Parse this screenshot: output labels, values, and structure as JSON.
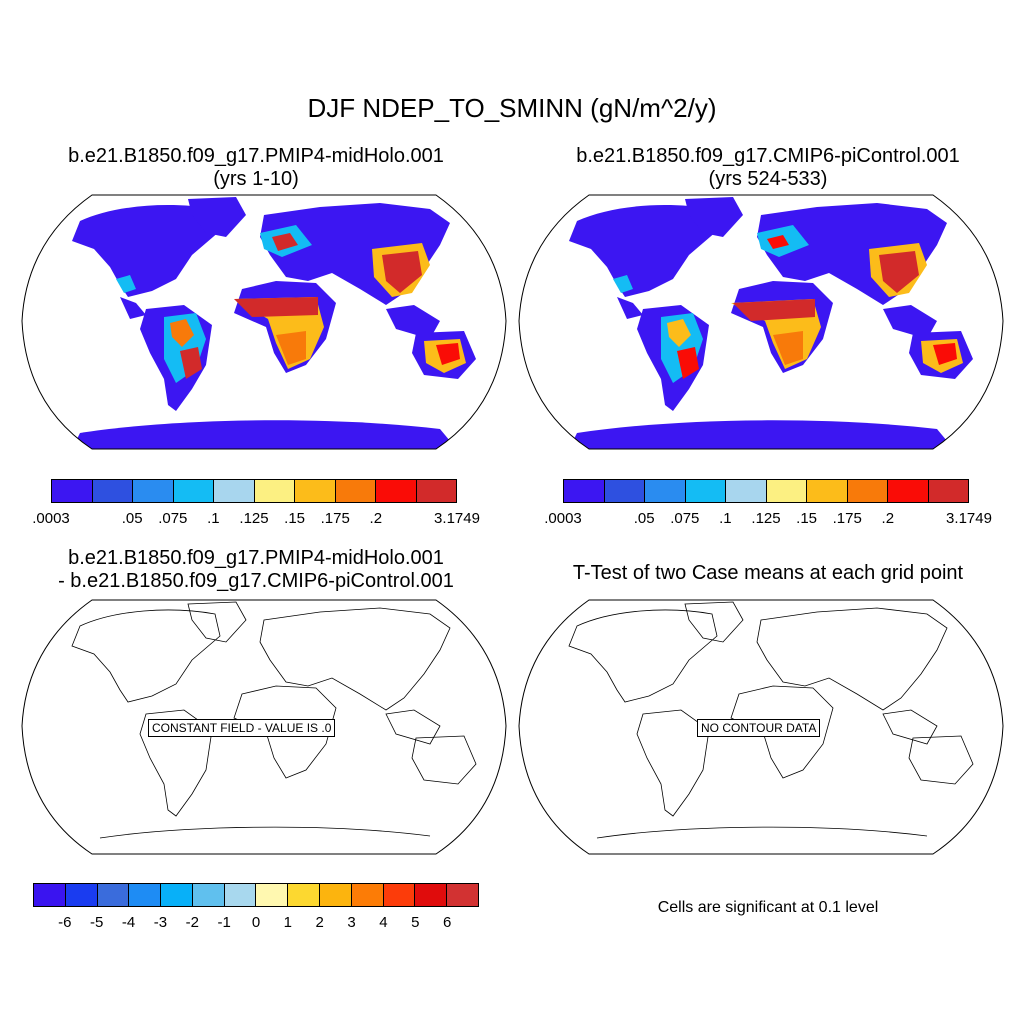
{
  "title": "DJF NDEP_TO_SMINN (gN/m^2/y)",
  "panels": [
    {
      "title_line1": "b.e21.B1850.f09_g17.PMIP4-midHolo.001",
      "title_line2": "(yrs 1-10)"
    },
    {
      "title_line1": "b.e21.B1850.f09_g17.CMIP6-piControl.001",
      "title_line2": "(yrs 524-533)"
    },
    {
      "title_line1": "b.e21.B1850.f09_g17.PMIP4-midHolo.001",
      "title_line2": "- b.e21.B1850.f09_g17.CMIP6-piControl.001",
      "notice": "CONSTANT FIELD - VALUE IS .0"
    },
    {
      "title_line1": "T-Test of two Case means at each grid point",
      "notice": "NO CONTOUR DATA"
    }
  ],
  "colorbar_abs": {
    "colors": [
      "#3c16f2",
      "#2e50e0",
      "#2a8cf0",
      "#14bcf4",
      "#a8d6ee",
      "#fcf082",
      "#fcbc1a",
      "#f87a0a",
      "#fa0c06",
      "#d22a2a"
    ],
    "labels": [
      ".0003",
      "",
      ".05",
      ".075",
      ".1",
      ".125",
      ".15",
      ".175",
      ".2",
      "",
      "3.1749"
    ]
  },
  "colorbar_diff": {
    "colors": [
      "#3a14f0",
      "#1a3cf0",
      "#3a6cdc",
      "#1e8cf4",
      "#08b0f8",
      "#60c0ee",
      "#a8d8ee",
      "#fff8b0",
      "#fcd830",
      "#fcb40e",
      "#fc7c06",
      "#fc3c0a",
      "#e00c0c",
      "#d23232"
    ],
    "labels": [
      "-6",
      "-5",
      "-4",
      "-3",
      "-2",
      "-1",
      "0",
      "1",
      "2",
      "3",
      "4",
      "5",
      "6"
    ]
  },
  "significance_note": "Cells are significant at 0.1 level"
}
